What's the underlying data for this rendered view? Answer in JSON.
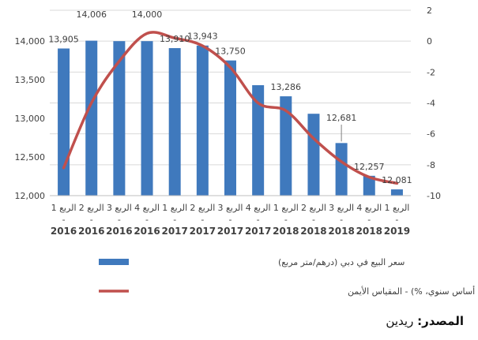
{
  "chart_data": {
    "type": "bar",
    "categories": [
      {
        "line1": "الربع 1",
        "line2": "-",
        "year": "2016"
      },
      {
        "line1": "الربع 2",
        "line2": "-",
        "year": "2016"
      },
      {
        "line1": "الربع 3",
        "line2": "-",
        "year": "2016"
      },
      {
        "line1": "الربع 4",
        "line2": "-",
        "year": "2016"
      },
      {
        "line1": "الربع 1",
        "line2": "-",
        "year": "2017"
      },
      {
        "line1": "الربع 2",
        "line2": "-",
        "year": "2017"
      },
      {
        "line1": "الربع 3",
        "line2": "-",
        "year": "2017"
      },
      {
        "line1": "الربع 4",
        "line2": "-",
        "year": "2017"
      },
      {
        "line1": "الربع 1",
        "line2": "-",
        "year": "2018"
      },
      {
        "line1": "الربع 2",
        "line2": "-",
        "year": "2018"
      },
      {
        "line1": "الربع 3",
        "line2": "-",
        "year": "2018"
      },
      {
        "line1": "الربع 4",
        "line2": "-",
        "year": "2018"
      },
      {
        "line1": "الربع 1",
        "line2": "-",
        "year": "2019"
      }
    ],
    "series": [
      {
        "name": "سعر البيع في دبي (درهم/متر مربع)",
        "kind": "bar",
        "axis": "left",
        "color": "#3f79bd",
        "values": [
          13905,
          14006,
          14000,
          14000,
          13910,
          13943,
          13750,
          13430,
          13286,
          13060,
          12681,
          12257,
          12081
        ],
        "data_labels": [
          "13,905",
          "14,006",
          "",
          "14,000",
          "13,910",
          "13,943",
          "13,750",
          "",
          "13,286",
          "",
          "12,681",
          "12,257",
          "12,081"
        ]
      },
      {
        "name": "نمو سعر البيع في دبي (على أساس سنوي، %) - المقياس الأيمن",
        "kind": "line",
        "axis": "right",
        "color": "#c0504d",
        "values": [
          -8.2,
          -4.0,
          -1.3,
          0.5,
          0.2,
          -0.3,
          -1.7,
          -4.0,
          -4.5,
          -6.3,
          -7.8,
          -8.8,
          -9.2
        ]
      }
    ],
    "left_axis": {
      "min": 12000,
      "max": 14000,
      "ticks": [
        "12,000",
        "12,500",
        "13,000",
        "13,500",
        "14,000"
      ]
    },
    "right_axis": {
      "min": -10,
      "max": 2,
      "ticks": [
        "-10",
        "-8",
        "-6",
        "-4",
        "-2",
        "0",
        "2"
      ]
    },
    "grid": true,
    "legend_position": "bottom"
  },
  "source": {
    "label": "المصدر:",
    "value": " ريدين"
  }
}
